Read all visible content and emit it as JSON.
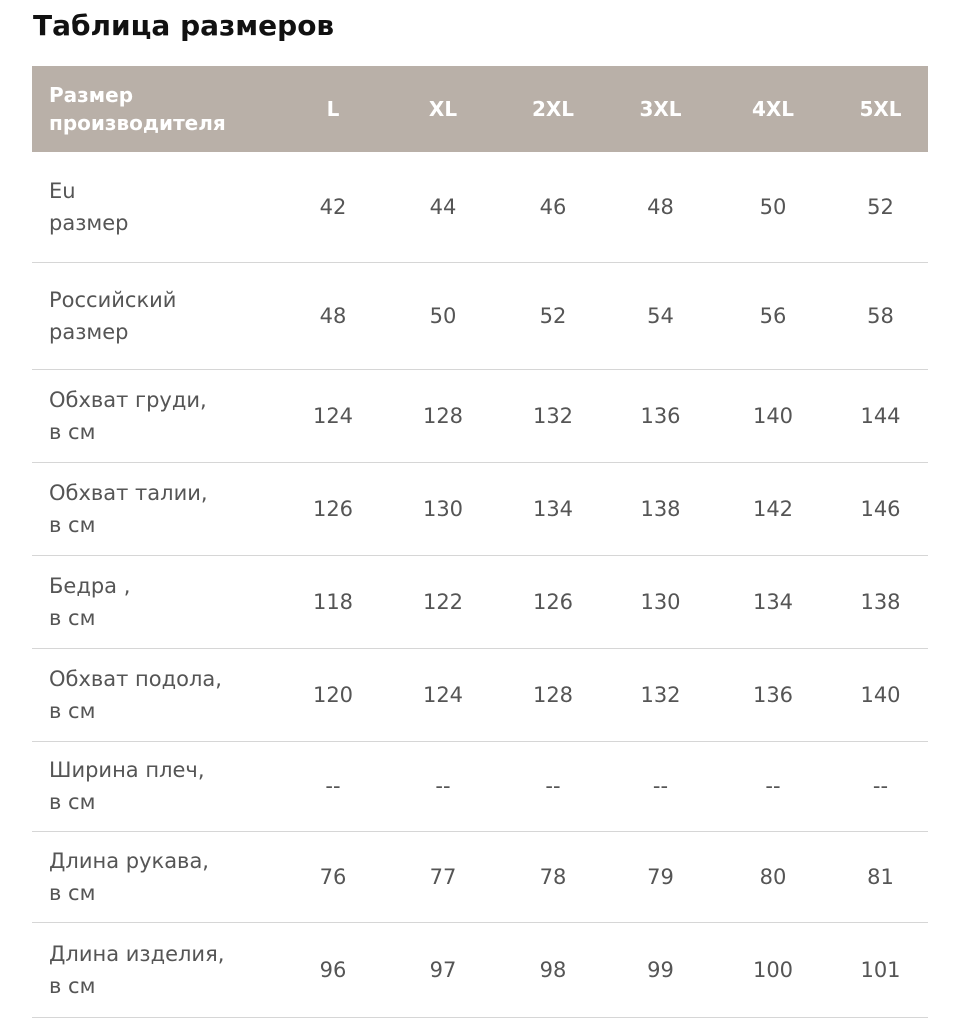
{
  "title": "Таблица размеров",
  "table": {
    "header": {
      "label_line1": "Размер",
      "label_line2": "производителя",
      "sizes": [
        "L",
        "XL",
        "2XL",
        "3XL",
        "4XL",
        "5XL"
      ]
    },
    "rows": [
      {
        "label_line1": "Eu",
        "label_line2": "размер",
        "values": [
          "42",
          "44",
          "46",
          "48",
          "50",
          "52"
        ]
      },
      {
        "label_line1": "Российский",
        "label_line2": "размер",
        "values": [
          "48",
          "50",
          "52",
          "54",
          "56",
          "58"
        ]
      },
      {
        "label_line1": "Обхват груди,",
        "label_line2": "в см",
        "values": [
          "124",
          "128",
          "132",
          "136",
          "140",
          "144"
        ]
      },
      {
        "label_line1": "Обхват талии,",
        "label_line2": "в см",
        "values": [
          "126",
          "130",
          "134",
          "138",
          "142",
          "146"
        ]
      },
      {
        "label_line1": "Бедра ,",
        "label_line2": "в см",
        "values": [
          "118",
          "122",
          "126",
          "130",
          "134",
          "138"
        ]
      },
      {
        "label_line1": "Обхват подола,",
        "label_line2": "в см",
        "values": [
          "120",
          "124",
          "128",
          "132",
          "136",
          "140"
        ]
      },
      {
        "label_line1": "Ширина плеч,",
        "label_line2": "в см",
        "values": [
          "--",
          "--",
          "--",
          "--",
          "--",
          "--"
        ]
      },
      {
        "label_line1": "Длина рукава,",
        "label_line2": "в см",
        "values": [
          "76",
          "77",
          "78",
          "79",
          "80",
          "81"
        ]
      },
      {
        "label_line1": "Длина изделия,",
        "label_line2": "в см",
        "values": [
          "96",
          "97",
          "98",
          "99",
          "100",
          "101"
        ]
      }
    ]
  },
  "colors": {
    "header_background": "#b9b0a8",
    "header_text": "#ffffff",
    "body_text": "#555555",
    "row_divider": "#d6d6d6"
  }
}
